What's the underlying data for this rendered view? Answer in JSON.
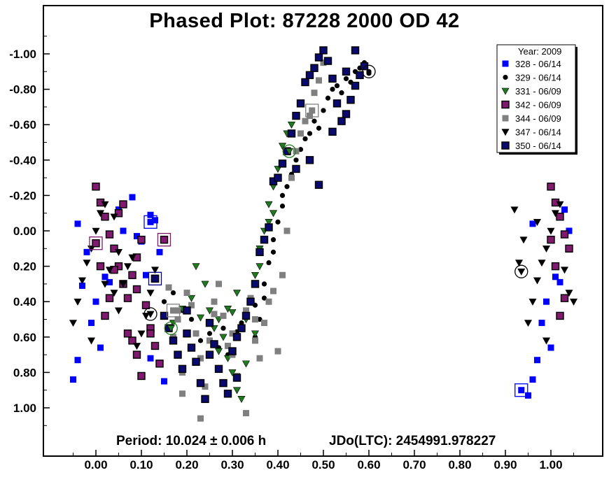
{
  "chart_data": {
    "type": "scatter",
    "title": "Phased Plot: 87228 2000 OD 42",
    "period_text": "Period: 10.024 ± 0.006 h",
    "jdo_text": "JDo(LTC): 2454991.978227",
    "xlim": [
      -0.1,
      1.12
    ],
    "ylim": [
      -1.1,
      1.25
    ],
    "y_inverted": true,
    "grid": false,
    "legend_position": "top-right",
    "legend_title": "Year: 2009",
    "x_ticks": [
      0.0,
      0.1,
      0.2,
      0.3,
      0.4,
      0.5,
      0.6,
      0.7,
      0.8,
      0.9,
      1.0
    ],
    "x_tick_labels": [
      "0.00",
      "0.10",
      "0.20",
      "0.30",
      "0.40",
      "0.50",
      "0.60",
      "0.70",
      "0.80",
      "0.90",
      "1.00"
    ],
    "y_ticks": [
      -1.0,
      -0.8,
      -0.6,
      -0.4,
      -0.2,
      0.0,
      0.2,
      0.4,
      0.6,
      0.8,
      1.0
    ],
    "y_tick_labels": [
      "-1.00",
      "-0.80",
      "-0.60",
      "-0.40",
      "-0.20",
      "0.00",
      "0.20",
      "0.40",
      "0.60",
      "0.80",
      "1.00"
    ],
    "series": [
      {
        "name": "328 - 06/14",
        "marker": "square",
        "color": "#0000ff",
        "points": [
          [
            -0.05,
            0.84
          ],
          [
            -0.04,
            0.73
          ],
          [
            -0.03,
            0.31
          ],
          [
            -0.02,
            0.12
          ],
          [
            -0.01,
            0.52
          ],
          [
            0.0,
            0.4
          ],
          [
            0.01,
            0.66
          ],
          [
            0.02,
            0.26
          ],
          [
            0.03,
            0.29
          ],
          [
            0.05,
            -0.12
          ],
          [
            0.06,
            0.0
          ],
          [
            0.08,
            -0.19
          ],
          [
            0.09,
            0.03
          ],
          [
            0.1,
            0.06
          ],
          [
            0.11,
            0.25
          ],
          [
            0.12,
            -0.09
          ],
          [
            0.13,
            -0.06
          ],
          [
            0.14,
            0.12
          ],
          [
            0.95,
            0.93
          ],
          [
            0.96,
            0.84
          ],
          [
            0.97,
            0.73
          ],
          [
            0.98,
            0.52
          ],
          [
            0.99,
            0.4
          ],
          [
            1.0,
            0.66
          ],
          [
            1.01,
            0.26
          ],
          [
            1.02,
            0.29
          ],
          [
            1.03,
            -0.12
          ],
          [
            1.04,
            0.0
          ],
          [
            -0.04,
            -0.04
          ],
          [
            0.96,
            -0.04
          ],
          [
            0.12,
            0.72
          ],
          [
            0.15,
            0.85
          ]
        ]
      },
      {
        "name": "329 - 06/14",
        "marker": "circle",
        "color": "#000000",
        "points": [
          [
            0.15,
            0.4
          ],
          [
            0.17,
            0.35
          ],
          [
            0.19,
            0.45
          ],
          [
            0.21,
            0.5
          ],
          [
            0.23,
            0.62
          ],
          [
            0.25,
            0.58
          ],
          [
            0.27,
            0.66
          ],
          [
            0.29,
            0.7
          ],
          [
            0.31,
            0.57
          ],
          [
            0.33,
            0.48
          ],
          [
            0.35,
            0.42
          ],
          [
            0.37,
            0.3
          ],
          [
            0.38,
            0.18
          ],
          [
            0.39,
            0.05
          ],
          [
            0.4,
            -0.05
          ],
          [
            0.41,
            -0.14
          ],
          [
            0.42,
            -0.25
          ],
          [
            0.43,
            -0.32
          ],
          [
            0.44,
            -0.4
          ],
          [
            0.45,
            -0.46
          ],
          [
            0.46,
            -0.52
          ],
          [
            0.47,
            -0.55
          ],
          [
            0.48,
            -0.62
          ],
          [
            0.49,
            -0.58
          ],
          [
            0.5,
            -0.68
          ],
          [
            0.51,
            -0.75
          ],
          [
            0.52,
            -0.8
          ],
          [
            0.53,
            -0.82
          ],
          [
            0.54,
            -0.78
          ],
          [
            0.55,
            -0.86
          ],
          [
            0.56,
            -0.84
          ],
          [
            0.57,
            -0.9
          ],
          [
            0.58,
            -0.92
          ],
          [
            0.59,
            -0.95
          ],
          [
            0.6,
            -0.89
          ],
          [
            0.35,
            0.6
          ],
          [
            0.32,
            0.52
          ],
          [
            0.28,
            0.55
          ],
          [
            0.36,
            0.5
          ],
          [
            0.37,
            0.38
          ],
          [
            0.39,
            0.12
          ],
          [
            0.41,
            -0.2
          ]
        ]
      },
      {
        "name": "331 - 06/09",
        "marker": "triangle-down",
        "color": "#1f7a1f",
        "points": [
          [
            0.17,
            0.52
          ],
          [
            0.19,
            0.44
          ],
          [
            0.21,
            0.38
          ],
          [
            0.22,
            0.2
          ],
          [
            0.24,
            0.3
          ],
          [
            0.25,
            0.45
          ],
          [
            0.26,
            0.55
          ],
          [
            0.27,
            0.5
          ],
          [
            0.28,
            0.6
          ],
          [
            0.29,
            0.72
          ],
          [
            0.3,
            0.8
          ],
          [
            0.31,
            0.9
          ],
          [
            0.32,
            0.95
          ],
          [
            0.33,
            0.75
          ],
          [
            0.34,
            0.4
          ],
          [
            0.35,
            0.25
          ],
          [
            0.36,
            0.1
          ],
          [
            0.37,
            0.0
          ],
          [
            0.38,
            -0.15
          ],
          [
            0.39,
            -0.25
          ],
          [
            0.4,
            -0.35
          ],
          [
            0.41,
            -0.48
          ],
          [
            0.42,
            -0.55
          ],
          [
            0.43,
            -0.6
          ],
          [
            0.2,
            0.58
          ],
          [
            0.23,
            0.49
          ],
          [
            0.27,
            0.68
          ],
          [
            0.29,
            0.44
          ],
          [
            0.33,
            0.5
          ],
          [
            0.31,
            0.35
          ],
          [
            0.35,
            0.58
          ],
          [
            0.38,
            -0.05
          ],
          [
            0.39,
            -0.1
          ],
          [
            0.36,
            0.2
          ],
          [
            0.3,
            0.46
          ]
        ]
      },
      {
        "name": "342 - 06/09",
        "marker": "square-bordered",
        "color": "#7f1a6f",
        "points": [
          [
            0.0,
            -0.25
          ],
          [
            0.01,
            -0.16
          ],
          [
            0.02,
            -0.08
          ],
          [
            0.03,
            0.02
          ],
          [
            0.04,
            0.1
          ],
          [
            0.05,
            0.2
          ],
          [
            0.06,
            0.3
          ],
          [
            0.07,
            0.38
          ],
          [
            0.08,
            0.25
          ],
          [
            0.09,
            0.15
          ],
          [
            0.1,
            0.05
          ],
          [
            0.11,
            0.42
          ],
          [
            0.12,
            0.55
          ],
          [
            0.13,
            0.65
          ],
          [
            0.14,
            0.75
          ],
          [
            0.02,
            0.48
          ],
          [
            0.03,
            0.38
          ],
          [
            0.05,
            -0.1
          ],
          [
            0.06,
            -0.15
          ],
          [
            0.07,
            0.58
          ],
          [
            0.08,
            0.62
          ],
          [
            0.09,
            0.7
          ],
          [
            0.1,
            0.82
          ],
          [
            0.12,
            0.58
          ],
          [
            0.01,
            0.2
          ],
          [
            0.04,
            0.22
          ],
          [
            0.09,
            0.33
          ],
          [
            1.0,
            -0.25
          ],
          [
            1.01,
            -0.16
          ],
          [
            1.02,
            -0.08
          ],
          [
            1.03,
            0.02
          ],
          [
            1.04,
            0.1
          ],
          [
            1.02,
            0.48
          ],
          [
            1.03,
            0.38
          ],
          [
            1.01,
            0.2
          ],
          [
            1.0,
            0.05
          ]
        ]
      },
      {
        "name": "344 - 06/09",
        "marker": "square",
        "color": "#808080",
        "points": [
          [
            0.17,
            0.6
          ],
          [
            0.18,
            0.5
          ],
          [
            0.19,
            0.8
          ],
          [
            0.2,
            0.35
          ],
          [
            0.21,
            0.42
          ],
          [
            0.22,
            0.58
          ],
          [
            0.23,
            0.72
          ],
          [
            0.24,
            0.88
          ],
          [
            0.25,
            0.62
          ],
          [
            0.26,
            0.4
          ],
          [
            0.27,
            0.3
          ],
          [
            0.28,
            0.48
          ],
          [
            0.29,
            0.65
          ],
          [
            0.3,
            0.7
          ],
          [
            0.31,
            0.82
          ],
          [
            0.32,
            0.55
          ],
          [
            0.33,
            0.45
          ],
          [
            0.34,
            0.38
          ],
          [
            0.35,
            0.62
          ],
          [
            0.36,
            0.72
          ],
          [
            0.37,
            0.52
          ],
          [
            0.38,
            0.4
          ],
          [
            0.39,
            0.34
          ],
          [
            0.4,
            0.68
          ],
          [
            0.41,
            0.25
          ],
          [
            0.42,
            0.0
          ],
          [
            0.43,
            -0.3
          ],
          [
            0.44,
            -0.45
          ],
          [
            0.45,
            -0.55
          ],
          [
            0.46,
            -0.62
          ],
          [
            0.47,
            -0.65
          ],
          [
            0.48,
            -0.78
          ],
          [
            0.49,
            -0.85
          ],
          [
            0.5,
            -0.95
          ],
          [
            0.19,
            0.92
          ],
          [
            0.23,
            1.06
          ],
          [
            0.33,
            1.03
          ],
          [
            0.16,
            0.32
          ],
          [
            0.18,
            0.45
          ],
          [
            0.26,
            0.47
          ],
          [
            0.3,
            0.58
          ],
          [
            0.35,
            0.5
          ]
        ]
      },
      {
        "name": "347 - 06/14",
        "marker": "triangle-down",
        "color": "#000000",
        "points": [
          [
            -0.05,
            0.52
          ],
          [
            -0.04,
            0.4
          ],
          [
            -0.03,
            0.28
          ],
          [
            -0.02,
            0.18
          ],
          [
            -0.01,
            0.1
          ],
          [
            0.0,
            0.0
          ],
          [
            0.01,
            -0.1
          ],
          [
            0.02,
            -0.15
          ],
          [
            0.03,
            0.22
          ],
          [
            0.04,
            0.35
          ],
          [
            0.05,
            0.45
          ],
          [
            0.06,
            0.3
          ],
          [
            0.07,
            0.2
          ],
          [
            0.08,
            0.15
          ],
          [
            0.09,
            0.65
          ],
          [
            0.1,
            0.58
          ],
          [
            0.11,
            0.48
          ],
          [
            0.12,
            0.35
          ],
          [
            0.13,
            0.22
          ],
          [
            -0.01,
            0.62
          ],
          [
            0.02,
            0.3
          ],
          [
            0.04,
            -0.08
          ],
          [
            0.05,
            0.12
          ],
          [
            0.95,
            0.52
          ],
          [
            0.96,
            0.4
          ],
          [
            0.97,
            0.28
          ],
          [
            0.98,
            0.18
          ],
          [
            0.99,
            0.1
          ],
          [
            1.0,
            0.0
          ],
          [
            1.01,
            -0.1
          ],
          [
            1.02,
            -0.15
          ],
          [
            1.03,
            0.22
          ],
          [
            1.04,
            0.35
          ],
          [
            1.05,
            0.4
          ],
          [
            0.92,
            -0.12
          ],
          [
            0.94,
            0.05
          ],
          [
            0.93,
            0.18
          ],
          [
            0.99,
            0.62
          ],
          [
            0.97,
            -0.05
          ]
        ]
      },
      {
        "name": "350 - 06/14",
        "marker": "square-bordered",
        "color": "#0a0a6e",
        "points": [
          [
            0.13,
            0.27
          ],
          [
            0.15,
            0.48
          ],
          [
            0.16,
            0.55
          ],
          [
            0.17,
            0.62
          ],
          [
            0.18,
            0.7
          ],
          [
            0.19,
            0.78
          ],
          [
            0.2,
            0.58
          ],
          [
            0.21,
            0.66
          ],
          [
            0.22,
            0.74
          ],
          [
            0.23,
            0.86
          ],
          [
            0.24,
            0.95
          ],
          [
            0.25,
            0.7
          ],
          [
            0.26,
            0.64
          ],
          [
            0.27,
            0.78
          ],
          [
            0.28,
            0.86
          ],
          [
            0.29,
            0.92
          ],
          [
            0.3,
            0.68
          ],
          [
            0.31,
            0.6
          ],
          [
            0.32,
            0.55
          ],
          [
            0.33,
            0.48
          ],
          [
            0.34,
            0.4
          ],
          [
            0.35,
            0.3
          ],
          [
            0.36,
            0.12
          ],
          [
            0.37,
            0.05
          ],
          [
            0.38,
            -0.02
          ],
          [
            0.39,
            -0.28
          ],
          [
            0.4,
            -0.3
          ],
          [
            0.41,
            -0.38
          ],
          [
            0.42,
            -0.45
          ],
          [
            0.43,
            -0.55
          ],
          [
            0.44,
            -0.65
          ],
          [
            0.45,
            -0.72
          ],
          [
            0.46,
            -0.84
          ],
          [
            0.47,
            -0.88
          ],
          [
            0.48,
            -0.92
          ],
          [
            0.49,
            -0.98
          ],
          [
            0.5,
            -1.02
          ],
          [
            0.51,
            -0.96
          ],
          [
            0.52,
            -0.86
          ],
          [
            0.53,
            -0.72
          ],
          [
            0.54,
            -0.62
          ],
          [
            0.55,
            -0.66
          ],
          [
            0.56,
            -0.74
          ],
          [
            0.57,
            -0.82
          ],
          [
            0.58,
            -0.88
          ],
          [
            0.59,
            -0.93
          ],
          [
            0.44,
            -0.35
          ],
          [
            0.47,
            -0.4
          ],
          [
            0.49,
            -0.26
          ],
          [
            0.52,
            -0.56
          ],
          [
            0.55,
            -0.9
          ],
          [
            0.57,
            -1.02
          ],
          [
            0.2,
            0.45
          ],
          [
            0.25,
            0.52
          ],
          [
            0.31,
            0.83
          ]
        ]
      }
    ],
    "highlighted_points": [
      {
        "series": "328 - 06/14",
        "x": 0.12,
        "y": -0.05
      },
      {
        "series": "328 - 06/14",
        "x": 0.935,
        "y": 0.9
      },
      {
        "series": "329 - 06/14",
        "x": 0.6,
        "y": -0.9
      },
      {
        "series": "331 - 06/09",
        "x": 0.425,
        "y": -0.45
      },
      {
        "series": "342 - 06/09",
        "x": 0.0,
        "y": 0.07
      },
      {
        "series": "342 - 06/09",
        "x": 0.15,
        "y": 0.05
      },
      {
        "series": "344 - 06/09",
        "x": 0.475,
        "y": -0.68
      },
      {
        "series": "344 - 06/09",
        "x": 0.17,
        "y": 0.45
      },
      {
        "series": "347 - 06/14",
        "x": 0.935,
        "y": 0.23
      },
      {
        "series": "347 - 06/14",
        "x": 0.12,
        "y": 0.47
      },
      {
        "series": "350 - 06/14",
        "x": 0.13,
        "y": 0.27
      },
      {
        "series": "331 - 06/09",
        "x": 0.165,
        "y": 0.55
      }
    ]
  }
}
